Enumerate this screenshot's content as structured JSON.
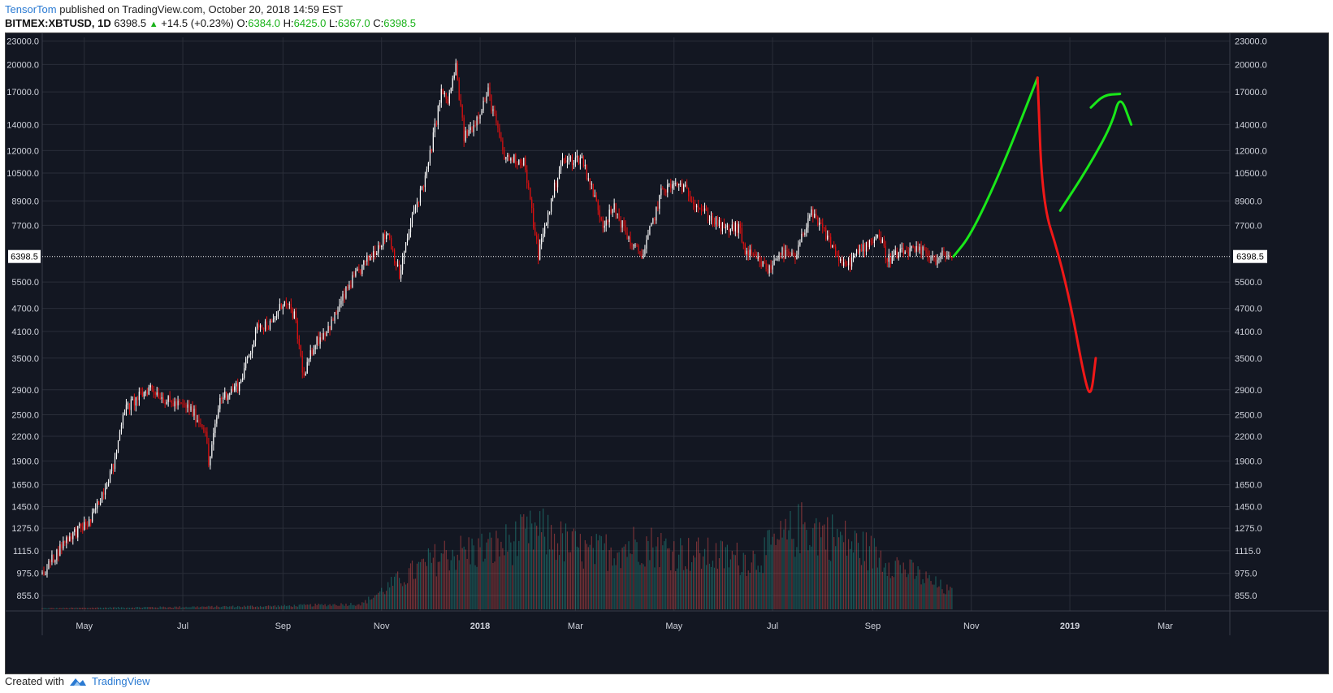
{
  "header": {
    "author": "TensorTom",
    "published_text": "published on TradingView.com, October 20, 2018 14:59 EST"
  },
  "symbol_line": {
    "symbol": "BITMEX:XBTUSD, 1D",
    "last": "6398.5",
    "change": "+14.5 (+0.23%)",
    "open_label": "O:",
    "open": "6384.0",
    "high_label": "H:",
    "high": "6425.0",
    "low_label": "L:",
    "low": "6367.0",
    "close_label": "C:",
    "close": "6398.5"
  },
  "footer": {
    "created_with": "Created with",
    "brand": "TradingView"
  },
  "colors": {
    "background": "#131722",
    "grid": "#2a2e39",
    "up_candle": "#ffffff",
    "down_candle": "#e01010",
    "volume_up": "#26a69a",
    "volume_down": "#ef5350",
    "last_price_line": "#ffffff",
    "drawing_green": "#19e819",
    "drawing_red": "#f01818"
  },
  "chart_data": {
    "type": "candlestick",
    "symbol": "BITMEX:XBTUSD",
    "interval": "1D",
    "y_scale": "log",
    "ylim": [
      780,
      23500
    ],
    "y_ticks": [
      23000,
      20000,
      17000,
      14000,
      12000,
      10500,
      8900,
      7700,
      5500,
      4700,
      4100,
      3500,
      2900,
      2500,
      2200,
      1900,
      1650,
      1450,
      1275,
      1115,
      975,
      855
    ],
    "y_tick_labels": [
      "23000.0",
      "20000.0",
      "17000.0",
      "14000.0",
      "12000.0",
      "10500.0",
      "8900.0",
      "7700.0",
      "5500.0",
      "4700.0",
      "4100.0",
      "3500.0",
      "2900.0",
      "2500.0",
      "2200.0",
      "1900.0",
      "1650.0",
      "1450.0",
      "1275.0",
      "1115.0",
      "975.0",
      "855.0"
    ],
    "x_range": [
      "2017-04-05",
      "2019-04-10"
    ],
    "x_ticks": [
      "2017-05-01",
      "2017-07-01",
      "2017-09-01",
      "2017-11-01",
      "2018-01-01",
      "2018-03-01",
      "2018-05-01",
      "2018-07-01",
      "2018-09-01",
      "2018-11-01",
      "2019-01-01",
      "2019-03-01"
    ],
    "x_tick_labels": [
      "May",
      "Jul",
      "Sep",
      "Nov",
      "2018",
      "Mar",
      "May",
      "Jul",
      "Sep",
      "Nov",
      "2019",
      "Mar"
    ],
    "last_price": 6398.5,
    "last_price_label": "6398.5",
    "price_path": [
      [
        "2017-04-05",
        970
      ],
      [
        "2017-04-20",
        1200
      ],
      [
        "2017-05-05",
        1330
      ],
      [
        "2017-05-20",
        1900
      ],
      [
        "2017-05-25",
        2550
      ],
      [
        "2017-06-05",
        2800
      ],
      [
        "2017-06-11",
        2950
      ],
      [
        "2017-06-22",
        2700
      ],
      [
        "2017-07-05",
        2600
      ],
      [
        "2017-07-15",
        2300
      ],
      [
        "2017-07-17",
        1850
      ],
      [
        "2017-07-24",
        2750
      ],
      [
        "2017-08-05",
        3000
      ],
      [
        "2017-08-17",
        4300
      ],
      [
        "2017-08-25",
        4250
      ],
      [
        "2017-09-01",
        4900
      ],
      [
        "2017-09-08",
        4500
      ],
      [
        "2017-09-14",
        3100
      ],
      [
        "2017-09-20",
        3800
      ],
      [
        "2017-10-01",
        4300
      ],
      [
        "2017-10-12",
        5400
      ],
      [
        "2017-10-20",
        6000
      ],
      [
        "2017-11-05",
        7400
      ],
      [
        "2017-11-12",
        5700
      ],
      [
        "2017-11-20",
        8100
      ],
      [
        "2017-11-29",
        10500
      ],
      [
        "2017-12-08",
        17000
      ],
      [
        "2017-12-12",
        16000
      ],
      [
        "2017-12-17",
        19700
      ],
      [
        "2017-12-22",
        13000
      ],
      [
        "2017-12-28",
        14000
      ],
      [
        "2018-01-06",
        17000
      ],
      [
        "2018-01-16",
        11500
      ],
      [
        "2018-01-28",
        11300
      ],
      [
        "2018-02-06",
        6500
      ],
      [
        "2018-02-20",
        11200
      ],
      [
        "2018-03-05",
        11500
      ],
      [
        "2018-03-18",
        7800
      ],
      [
        "2018-03-25",
        8500
      ],
      [
        "2018-04-06",
        6700
      ],
      [
        "2018-04-12",
        6500
      ],
      [
        "2018-04-24",
        9600
      ],
      [
        "2018-05-05",
        9800
      ],
      [
        "2018-05-20",
        8300
      ],
      [
        "2018-06-01",
        7500
      ],
      [
        "2018-06-10",
        7600
      ],
      [
        "2018-06-14",
        6600
      ],
      [
        "2018-06-29",
        5900
      ],
      [
        "2018-07-05",
        6600
      ],
      [
        "2018-07-15",
        6300
      ],
      [
        "2018-07-24",
        8300
      ],
      [
        "2018-08-04",
        7200
      ],
      [
        "2018-08-14",
        6000
      ],
      [
        "2018-08-30",
        7000
      ],
      [
        "2018-09-05",
        7300
      ],
      [
        "2018-09-10",
        6300
      ],
      [
        "2018-09-22",
        6600
      ],
      [
        "2018-10-05",
        6550
      ],
      [
        "2018-10-11",
        6200
      ],
      [
        "2018-10-15",
        6500
      ],
      [
        "2018-10-20",
        6398.5
      ]
    ],
    "volume": {
      "description": "daily volume bars, up=teal, down=red",
      "relative_path": [
        [
          "2017-04-05",
          0.01
        ],
        [
          "2017-09-01",
          0.03
        ],
        [
          "2017-10-20",
          0.05
        ],
        [
          "2017-11-10",
          0.25
        ],
        [
          "2017-12-10",
          0.5
        ],
        [
          "2018-01-10",
          0.55
        ],
        [
          "2018-02-06",
          0.7
        ],
        [
          "2018-03-10",
          0.5
        ],
        [
          "2018-04-10",
          0.6
        ],
        [
          "2018-05-10",
          0.5
        ],
        [
          "2018-06-20",
          0.45
        ],
        [
          "2018-07-20",
          0.75
        ],
        [
          "2018-08-10",
          0.65
        ],
        [
          "2018-09-10",
          0.45
        ],
        [
          "2018-10-20",
          0.15
        ]
      ]
    },
    "annotations": [
      {
        "type": "hand-drawn",
        "color": "green",
        "points": [
          [
            "2018-10-21",
            6400
          ],
          [
            "2018-11-01",
            7300
          ],
          [
            "2018-11-20",
            10800
          ],
          [
            "2018-12-12",
            18500
          ]
        ]
      },
      {
        "type": "hand-drawn",
        "color": "red",
        "points": [
          [
            "2018-12-12",
            18500
          ],
          [
            "2018-12-15",
            8800
          ],
          [
            "2018-12-25",
            6500
          ],
          [
            "2019-01-02",
            4700
          ],
          [
            "2019-01-10",
            3100
          ],
          [
            "2019-01-14",
            2750
          ],
          [
            "2019-01-17",
            3500
          ]
        ]
      },
      {
        "type": "hand-drawn",
        "color": "green",
        "points": [
          [
            "2018-12-26",
            8400
          ],
          [
            "2019-01-12",
            10800
          ],
          [
            "2019-01-27",
            14000
          ],
          [
            "2019-02-01",
            16800
          ],
          [
            "2019-02-08",
            14000
          ]
        ]
      },
      {
        "type": "hand-drawn",
        "color": "green",
        "points": [
          [
            "2019-01-14",
            15500
          ],
          [
            "2019-01-22",
            16700
          ],
          [
            "2019-02-01",
            16800
          ]
        ]
      }
    ]
  }
}
